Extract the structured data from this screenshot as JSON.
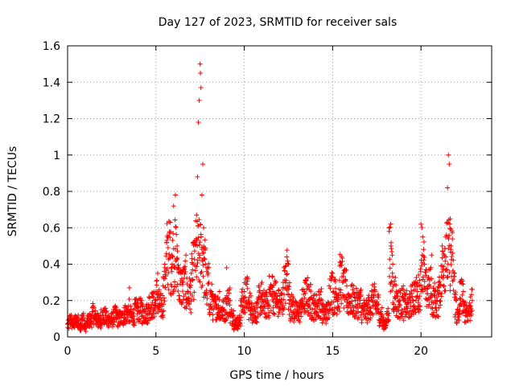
{
  "chart_data": {
    "type": "scatter",
    "title": "Day 127 of 2023, SRMTID for receiver sals",
    "xlabel": "GPS time / hours",
    "ylabel": "SRMTID / TECUs",
    "xlim": [
      0,
      24
    ],
    "ylim": [
      0,
      1.6
    ],
    "xticks": [
      0,
      5,
      10,
      15,
      20
    ],
    "xtick_labels": [
      "0",
      "5",
      "10",
      "15",
      "20"
    ],
    "yticks": [
      0,
      0.2,
      0.4,
      0.6,
      0.8,
      1,
      1.2,
      1.4,
      1.6
    ],
    "ytick_labels": [
      "0",
      "0.2",
      "0.4",
      "0.6",
      "0.8",
      "1",
      "1.2",
      "1.4",
      "1.6"
    ],
    "grid": true,
    "marker": "+",
    "series": [
      {
        "name": "SRMTID",
        "color": "#ff0000",
        "x_range": [
          0,
          22.9
        ],
        "points": [
          [
            0.0,
            0.07
          ],
          [
            0.1,
            0.1
          ],
          [
            0.2,
            0.12
          ],
          [
            0.3,
            0.08
          ],
          [
            0.4,
            0.11
          ],
          [
            0.5,
            0.09
          ],
          [
            0.6,
            0.12
          ],
          [
            0.7,
            0.07
          ],
          [
            0.8,
            0.1
          ],
          [
            0.9,
            0.13
          ],
          [
            1.0,
            0.06
          ],
          [
            1.1,
            0.09
          ],
          [
            1.2,
            0.12
          ],
          [
            1.3,
            0.1
          ],
          [
            1.4,
            0.14
          ],
          [
            1.5,
            0.16
          ],
          [
            1.6,
            0.11
          ],
          [
            1.7,
            0.13
          ],
          [
            1.8,
            0.09
          ],
          [
            1.9,
            0.15
          ],
          [
            2.0,
            0.12
          ],
          [
            2.2,
            0.14
          ],
          [
            2.4,
            0.1
          ],
          [
            2.6,
            0.15
          ],
          [
            2.8,
            0.13
          ],
          [
            3.0,
            0.11
          ],
          [
            3.2,
            0.16
          ],
          [
            3.4,
            0.14
          ],
          [
            3.5,
            0.27
          ],
          [
            3.6,
            0.12
          ],
          [
            3.8,
            0.18
          ],
          [
            4.0,
            0.16
          ],
          [
            4.2,
            0.2
          ],
          [
            4.4,
            0.14
          ],
          [
            4.6,
            0.22
          ],
          [
            4.8,
            0.19
          ],
          [
            5.0,
            0.25
          ],
          [
            5.1,
            0.35
          ],
          [
            5.2,
            0.18
          ],
          [
            5.4,
            0.28
          ],
          [
            5.5,
            0.4
          ],
          [
            5.6,
            0.52
          ],
          [
            5.7,
            0.55
          ],
          [
            5.8,
            0.63
          ],
          [
            5.9,
            0.45
          ],
          [
            6.0,
            0.72
          ],
          [
            6.1,
            0.78
          ],
          [
            6.2,
            0.5
          ],
          [
            6.3,
            0.38
          ],
          [
            6.5,
            0.3
          ],
          [
            6.7,
            0.45
          ],
          [
            6.8,
            0.25
          ],
          [
            7.0,
            0.35
          ],
          [
            7.1,
            0.4
          ],
          [
            7.2,
            0.52
          ],
          [
            7.3,
            0.67
          ],
          [
            7.35,
            0.88
          ],
          [
            7.4,
            1.18
          ],
          [
            7.45,
            1.3
          ],
          [
            7.5,
            1.5
          ],
          [
            7.52,
            1.45
          ],
          [
            7.55,
            1.37
          ],
          [
            7.6,
            0.78
          ],
          [
            7.65,
            0.95
          ],
          [
            7.7,
            0.6
          ],
          [
            7.8,
            0.4
          ],
          [
            8.0,
            0.3
          ],
          [
            8.2,
            0.22
          ],
          [
            8.4,
            0.18
          ],
          [
            8.6,
            0.25
          ],
          [
            8.8,
            0.15
          ],
          [
            9.0,
            0.38
          ],
          [
            9.2,
            0.2
          ],
          [
            9.4,
            0.12
          ],
          [
            9.6,
            0.08
          ],
          [
            9.8,
            0.2
          ],
          [
            10.0,
            0.25
          ],
          [
            10.2,
            0.32
          ],
          [
            10.4,
            0.18
          ],
          [
            10.6,
            0.15
          ],
          [
            10.8,
            0.22
          ],
          [
            11.0,
            0.3
          ],
          [
            11.2,
            0.19
          ],
          [
            11.4,
            0.26
          ],
          [
            11.6,
            0.33
          ],
          [
            11.8,
            0.24
          ],
          [
            12.0,
            0.2
          ],
          [
            12.2,
            0.3
          ],
          [
            12.4,
            0.44
          ],
          [
            12.5,
            0.4
          ],
          [
            12.6,
            0.22
          ],
          [
            12.8,
            0.18
          ],
          [
            13.0,
            0.15
          ],
          [
            13.2,
            0.2
          ],
          [
            13.4,
            0.25
          ],
          [
            13.6,
            0.28
          ],
          [
            13.8,
            0.22
          ],
          [
            14.0,
            0.18
          ],
          [
            14.2,
            0.25
          ],
          [
            14.4,
            0.2
          ],
          [
            14.6,
            0.14
          ],
          [
            14.8,
            0.28
          ],
          [
            15.0,
            0.35
          ],
          [
            15.2,
            0.24
          ],
          [
            15.4,
            0.39
          ],
          [
            15.6,
            0.35
          ],
          [
            15.8,
            0.28
          ],
          [
            16.0,
            0.22
          ],
          [
            16.2,
            0.24
          ],
          [
            16.4,
            0.2
          ],
          [
            16.6,
            0.26
          ],
          [
            16.8,
            0.15
          ],
          [
            17.0,
            0.18
          ],
          [
            17.2,
            0.22
          ],
          [
            17.4,
            0.25
          ],
          [
            17.6,
            0.18
          ],
          [
            17.8,
            0.12
          ],
          [
            18.0,
            0.08
          ],
          [
            18.2,
            0.58
          ],
          [
            18.3,
            0.5
          ],
          [
            18.4,
            0.4
          ],
          [
            18.6,
            0.25
          ],
          [
            18.8,
            0.2
          ],
          [
            19.0,
            0.28
          ],
          [
            19.2,
            0.18
          ],
          [
            19.4,
            0.22
          ],
          [
            19.6,
            0.3
          ],
          [
            19.8,
            0.25
          ],
          [
            20.0,
            0.62
          ],
          [
            20.1,
            0.55
          ],
          [
            20.2,
            0.4
          ],
          [
            20.4,
            0.28
          ],
          [
            20.6,
            0.45
          ],
          [
            20.8,
            0.2
          ],
          [
            21.0,
            0.3
          ],
          [
            21.2,
            0.5
          ],
          [
            21.4,
            0.55
          ],
          [
            21.5,
            0.82
          ],
          [
            21.55,
            1.0
          ],
          [
            21.6,
            0.95
          ],
          [
            21.65,
            0.65
          ],
          [
            21.7,
            0.5
          ],
          [
            21.8,
            0.46
          ],
          [
            21.9,
            0.35
          ],
          [
            22.0,
            0.2
          ],
          [
            22.1,
            0.12
          ],
          [
            22.2,
            0.3
          ],
          [
            22.4,
            0.25
          ],
          [
            22.6,
            0.15
          ],
          [
            22.8,
            0.22
          ],
          [
            22.9,
            0.2
          ]
        ]
      }
    ]
  }
}
